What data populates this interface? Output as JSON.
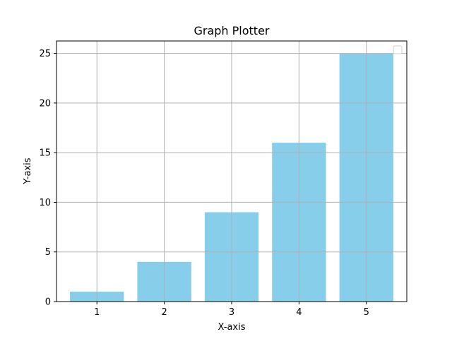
{
  "chart_data": {
    "type": "bar",
    "title": "Graph Plotter",
    "xlabel": "X-axis",
    "ylabel": "Y-axis",
    "categories": [
      "1",
      "2",
      "3",
      "4",
      "5"
    ],
    "x": [
      1,
      2,
      3,
      4,
      5
    ],
    "values": [
      1,
      4,
      9,
      16,
      25
    ],
    "xlim": [
      0.4,
      5.6
    ],
    "ylim": [
      0,
      26.25
    ],
    "xticks": [
      1,
      2,
      3,
      4,
      5
    ],
    "yticks": [
      0,
      5,
      10,
      15,
      20,
      25
    ],
    "bar_width": 0.8,
    "grid": true,
    "legend": "upper right (empty)",
    "colors": {
      "bar": "#87ceeb",
      "grid": "#b0b0b0",
      "axes": "#000000"
    }
  }
}
